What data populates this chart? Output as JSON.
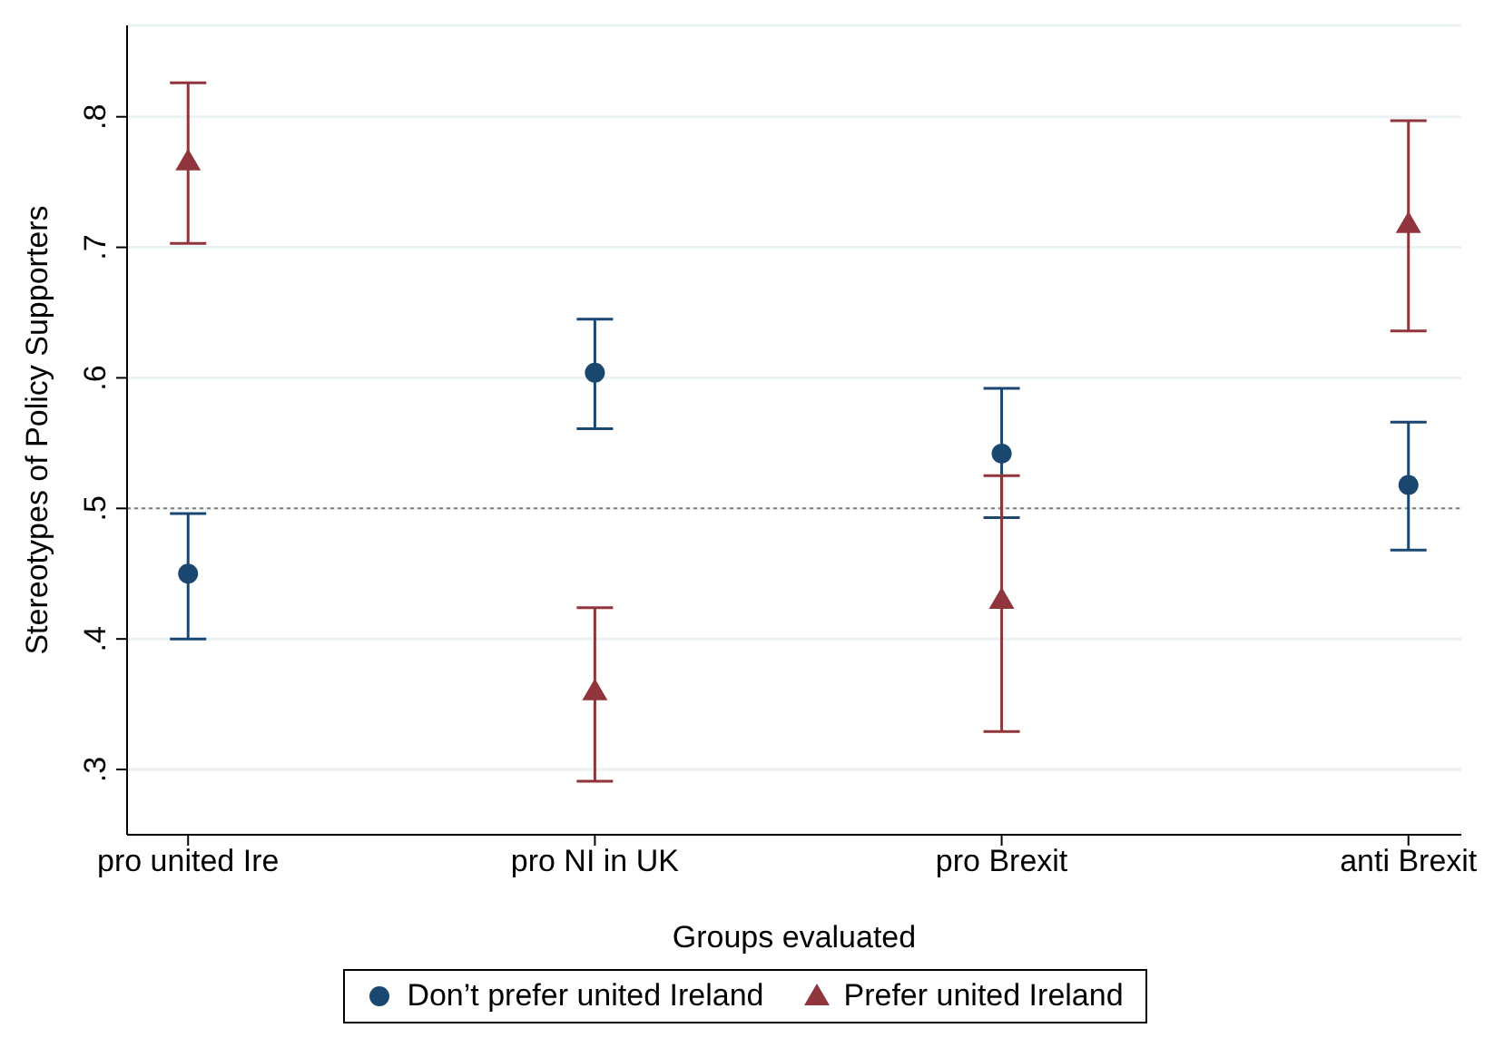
{
  "chart_data": {
    "type": "scatter",
    "xlabel": "Groups evaluated",
    "ylabel": "Stereotypes of Policy Supporters",
    "categories": [
      "pro united Ire",
      "pro NI in UK",
      "pro Brexit",
      "anti Brexit"
    ],
    "series": [
      {
        "name": "Don’t prefer united Ireland",
        "color": "#1a476f",
        "marker": "circle",
        "values": [
          0.45,
          0.604,
          0.542,
          0.518
        ],
        "errors": [
          [
            0.4,
            0.496
          ],
          [
            0.561,
            0.645
          ],
          [
            0.493,
            0.592
          ],
          [
            0.468,
            0.566
          ]
        ]
      },
      {
        "name": "Prefer united Ireland",
        "color": "#90353b",
        "marker": "triangle",
        "values": [
          0.766,
          0.36,
          0.43,
          0.718
        ],
        "errors": [
          [
            0.703,
            0.826
          ],
          [
            0.291,
            0.424
          ],
          [
            0.329,
            0.525
          ],
          [
            0.636,
            0.797
          ]
        ]
      }
    ],
    "ylim": [
      0.25,
      0.87
    ],
    "yticks": [
      {
        "value": 0.3,
        "label": ".3"
      },
      {
        "value": 0.4,
        "label": ".4"
      },
      {
        "value": 0.5,
        "label": ".5"
      },
      {
        "value": 0.6,
        "label": ".6"
      },
      {
        "value": 0.7,
        "label": ".7"
      },
      {
        "value": 0.8,
        "label": ".8"
      }
    ],
    "grid": "y",
    "ref_lines": [
      {
        "axis": "y",
        "value": 0.5,
        "color": "#808080",
        "line_style": "dotted"
      }
    ],
    "legend": "bottom"
  }
}
